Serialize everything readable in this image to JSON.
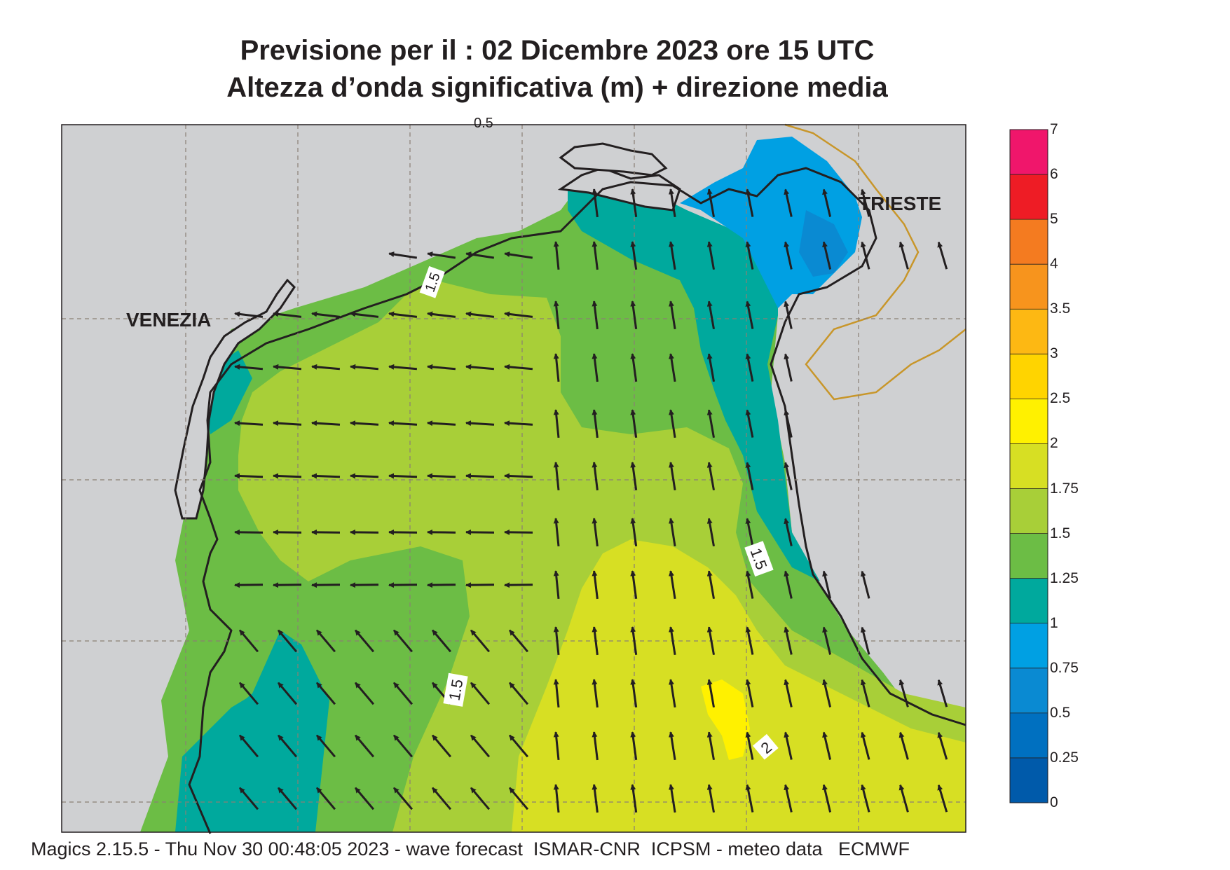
{
  "title": {
    "line1": "Previsione per il  :  02 Dicembre  2023   ore 15 UTC",
    "line2": "Altezza d’onda significativa (m) + direzione media"
  },
  "cities": {
    "venezia": "VENEZIA",
    "trieste": "TRIESTE"
  },
  "contour_labels": {
    "top": "1.5",
    "mid_left": "1.5",
    "right": "1.5",
    "peak": "2",
    "edge": "0.5"
  },
  "legend": {
    "unit": "m",
    "levels": [
      "7",
      "6",
      "5",
      "4",
      "3.5",
      "3",
      "2.5",
      "2",
      "1.75",
      "1.5",
      "1.25",
      "1",
      "0.75",
      "0.5",
      "0.25",
      "0"
    ],
    "colors": [
      "#f0166b",
      "#ee1c25",
      "#f47b20",
      "#f7941d",
      "#fdb813",
      "#ffd400",
      "#fff100",
      "#d7df23",
      "#a8cf38",
      "#6cbd45",
      "#00a99d",
      "#00a0e3",
      "#0a8ad2",
      "#0070c0",
      "#005aaa"
    ]
  },
  "colors": {
    "land": "#cfd0d2",
    "border": "#c8962a",
    "coast": "#231f20",
    "grid": "#8a7f74"
  },
  "footer": "Magics 2.15.5 - Thu Nov 30 00:48:05 2023 - wave forecast  ISMAR-CNR  ICPSM - meteo data   ECMWF"
}
